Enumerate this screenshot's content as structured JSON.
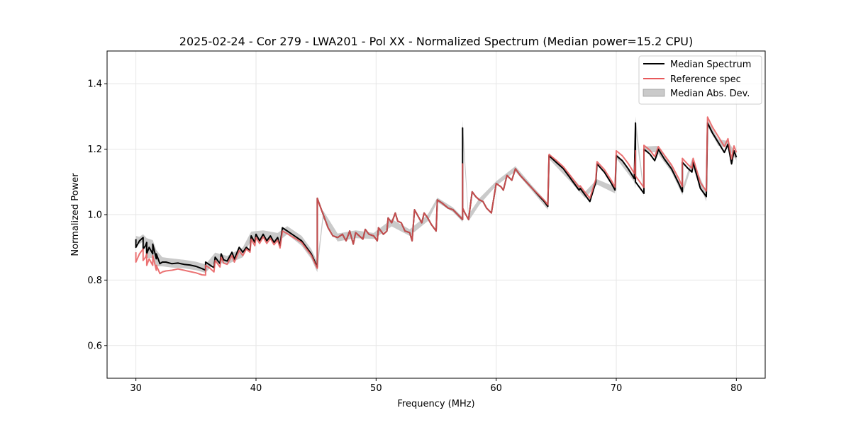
{
  "chart_data": {
    "type": "line",
    "title": "2025-02-24 - Cor 279 - LWA201 - Pol XX - Normalized Spectrum (Median power=15.2 CPU)",
    "xlabel": "Frequency (MHz)",
    "ylabel": "Normalized Power",
    "xlim": [
      27.6,
      82.4
    ],
    "ylim": [
      0.5,
      1.5
    ],
    "xticks": [
      30,
      40,
      50,
      60,
      70,
      80
    ],
    "yticks": [
      0.6,
      0.8,
      1.0,
      1.2,
      1.4
    ],
    "xtick_labels": [
      "30",
      "40",
      "50",
      "60",
      "70",
      "80"
    ],
    "ytick_labels": [
      "0.6",
      "0.8",
      "1.0",
      "1.2",
      "1.4"
    ],
    "grid": true,
    "legend_position": "top-right",
    "legend": [
      {
        "label": "Median Spectrum",
        "kind": "line",
        "color": "#000000"
      },
      {
        "label": "Reference spec",
        "kind": "line",
        "color": "#e8595b"
      },
      {
        "label": "Median Abs. Dev.",
        "kind": "band",
        "color": "#bdbdbd"
      }
    ],
    "series": [
      {
        "name": "Median Spectrum",
        "color": "#000000",
        "x": [
          30.0,
          30.0,
          30.3,
          30.6,
          30.6,
          30.8,
          30.9,
          30.9,
          31.1,
          31.4,
          31.4,
          31.7,
          31.7,
          32.0,
          32.2,
          32.5,
          33.0,
          33.5,
          34.0,
          34.5,
          35.0,
          35.5,
          35.8,
          35.8,
          36.2,
          36.5,
          36.6,
          37.0,
          37.1,
          37.3,
          37.6,
          38.0,
          38.2,
          38.6,
          38.9,
          39.2,
          39.5,
          39.6,
          39.9,
          40.0,
          40.3,
          40.6,
          40.9,
          41.2,
          41.5,
          41.8,
          42.0,
          42.2,
          42.6,
          43.0,
          43.4,
          43.8,
          44.2,
          44.6,
          45.1,
          45.1,
          45.3,
          45.6,
          46.0,
          46.4,
          46.8,
          47.2,
          47.5,
          47.8,
          48.1,
          48.3,
          48.6,
          48.9,
          49.1,
          49.4,
          49.8,
          50.1,
          50.2,
          50.6,
          50.9,
          51.0,
          51.3,
          51.6,
          51.8,
          52.1,
          52.4,
          52.8,
          53.0,
          53.2,
          53.5,
          53.8,
          54.0,
          54.3,
          54.6,
          55.0,
          55.1,
          55.5,
          56.0,
          56.4,
          56.8,
          57.2,
          57.2,
          57.2,
          57.4,
          57.7,
          58.0,
          58.3,
          58.6,
          58.9,
          59.2,
          59.6,
          60.0,
          60.4,
          60.6,
          60.9,
          61.3,
          61.6,
          62.0,
          62.5,
          63.0,
          63.5,
          64.0,
          64.3,
          64.4,
          65.0,
          65.6,
          66.2,
          66.9,
          67.0,
          67.4,
          67.8,
          68.3,
          68.4,
          69.0,
          69.6,
          69.9,
          70.0,
          70.5,
          71.0,
          71.5,
          71.6,
          71.6,
          71.6,
          72.0,
          72.3,
          72.3,
          72.8,
          73.2,
          73.4,
          73.5,
          74.0,
          74.6,
          75.2,
          75.5,
          75.5,
          76.0,
          76.3,
          76.4,
          77.0,
          77.5,
          77.6,
          78.0,
          78.5,
          79.0,
          79.3,
          79.6,
          79.8,
          80.0
        ],
        "values": [
          0.925,
          0.9,
          0.92,
          0.93,
          0.895,
          0.905,
          0.915,
          0.88,
          0.9,
          0.88,
          0.91,
          0.865,
          0.88,
          0.85,
          0.855,
          0.855,
          0.85,
          0.852,
          0.848,
          0.846,
          0.842,
          0.835,
          0.83,
          0.855,
          0.845,
          0.838,
          0.87,
          0.85,
          0.88,
          0.862,
          0.858,
          0.885,
          0.864,
          0.9,
          0.885,
          0.9,
          0.89,
          0.935,
          0.915,
          0.94,
          0.92,
          0.94,
          0.92,
          0.935,
          0.915,
          0.93,
          0.905,
          0.96,
          0.95,
          0.94,
          0.93,
          0.92,
          0.9,
          0.88,
          0.84,
          1.05,
          1.03,
          1.0,
          0.96,
          0.935,
          0.93,
          0.94,
          0.92,
          0.95,
          0.91,
          0.945,
          0.935,
          0.925,
          0.955,
          0.94,
          0.935,
          0.92,
          0.96,
          0.94,
          0.95,
          0.99,
          0.975,
          1.005,
          0.98,
          0.975,
          0.95,
          0.945,
          0.92,
          1.015,
          0.995,
          0.975,
          1.005,
          0.99,
          0.97,
          0.95,
          1.045,
          1.035,
          1.02,
          1.015,
          1.0,
          0.985,
          1.265,
          1.02,
          1.005,
          0.985,
          1.07,
          1.055,
          1.045,
          1.04,
          1.02,
          1.005,
          1.095,
          1.085,
          1.075,
          1.12,
          1.105,
          1.14,
          1.12,
          1.1,
          1.08,
          1.06,
          1.04,
          1.025,
          1.18,
          1.16,
          1.14,
          1.11,
          1.075,
          1.08,
          1.06,
          1.04,
          1.1,
          1.155,
          1.13,
          1.095,
          1.075,
          1.18,
          1.165,
          1.14,
          1.11,
          1.28,
          1.18,
          1.1,
          1.08,
          1.065,
          1.2,
          1.185,
          1.165,
          1.185,
          1.2,
          1.17,
          1.14,
          1.095,
          1.07,
          1.16,
          1.14,
          1.13,
          1.16,
          1.08,
          1.055,
          1.28,
          1.25,
          1.22,
          1.19,
          1.215,
          1.155,
          1.195,
          1.175
        ]
      },
      {
        "name": "Reference spec",
        "color": "#e8595b",
        "x": [
          30.0,
          30.0,
          30.3,
          30.6,
          30.6,
          30.8,
          30.9,
          30.9,
          31.1,
          31.4,
          31.4,
          31.7,
          31.7,
          32.0,
          32.2,
          32.5,
          33.0,
          33.5,
          34.0,
          34.5,
          35.0,
          35.5,
          35.8,
          35.8,
          36.2,
          36.5,
          36.6,
          37.0,
          37.1,
          37.3,
          37.6,
          38.0,
          38.2,
          38.6,
          38.9,
          39.2,
          39.5,
          39.6,
          39.9,
          40.0,
          40.3,
          40.6,
          40.9,
          41.2,
          41.5,
          41.8,
          42.0,
          42.2,
          42.6,
          43.0,
          43.4,
          43.8,
          44.2,
          44.6,
          45.1,
          45.1,
          45.3,
          45.6,
          46.0,
          46.4,
          46.8,
          47.2,
          47.5,
          47.8,
          48.1,
          48.3,
          48.6,
          48.9,
          49.1,
          49.4,
          49.8,
          50.1,
          50.2,
          50.6,
          50.9,
          51.0,
          51.3,
          51.6,
          51.8,
          52.1,
          52.4,
          52.8,
          53.0,
          53.2,
          53.5,
          53.8,
          54.0,
          54.3,
          54.6,
          55.0,
          55.1,
          55.5,
          56.0,
          56.4,
          56.8,
          57.2,
          57.2,
          57.2,
          57.4,
          57.7,
          58.0,
          58.3,
          58.6,
          58.9,
          59.2,
          59.6,
          60.0,
          60.4,
          60.6,
          60.9,
          61.3,
          61.6,
          62.0,
          62.5,
          63.0,
          63.5,
          64.0,
          64.3,
          64.4,
          65.0,
          65.6,
          66.2,
          66.9,
          67.0,
          67.4,
          67.8,
          68.3,
          68.4,
          69.0,
          69.6,
          69.9,
          70.0,
          70.5,
          71.0,
          71.5,
          71.6,
          71.6,
          71.6,
          72.0,
          72.3,
          72.3,
          72.8,
          73.2,
          73.4,
          73.5,
          74.0,
          74.6,
          75.2,
          75.5,
          75.5,
          76.0,
          76.3,
          76.4,
          77.0,
          77.5,
          77.6,
          78.0,
          78.5,
          79.0,
          79.3,
          79.6,
          79.8,
          80.0
        ],
        "values": [
          0.885,
          0.855,
          0.88,
          0.895,
          0.86,
          0.87,
          0.88,
          0.845,
          0.865,
          0.845,
          0.875,
          0.83,
          0.845,
          0.82,
          0.825,
          0.828,
          0.83,
          0.834,
          0.83,
          0.826,
          0.822,
          0.816,
          0.815,
          0.845,
          0.835,
          0.825,
          0.86,
          0.84,
          0.87,
          0.852,
          0.848,
          0.875,
          0.855,
          0.89,
          0.875,
          0.895,
          0.885,
          0.925,
          0.905,
          0.93,
          0.912,
          0.932,
          0.912,
          0.927,
          0.908,
          0.922,
          0.898,
          0.95,
          0.942,
          0.933,
          0.924,
          0.915,
          0.895,
          0.876,
          0.836,
          1.05,
          1.03,
          1.0,
          0.96,
          0.935,
          0.93,
          0.94,
          0.92,
          0.95,
          0.91,
          0.945,
          0.935,
          0.925,
          0.955,
          0.94,
          0.935,
          0.92,
          0.96,
          0.94,
          0.95,
          0.99,
          0.975,
          1.005,
          0.98,
          0.975,
          0.95,
          0.945,
          0.92,
          1.015,
          0.995,
          0.975,
          1.005,
          0.99,
          0.97,
          0.95,
          1.045,
          1.035,
          1.02,
          1.015,
          1.0,
          0.985,
          1.155,
          1.02,
          1.005,
          0.985,
          1.07,
          1.055,
          1.045,
          1.04,
          1.02,
          1.005,
          1.095,
          1.085,
          1.075,
          1.12,
          1.105,
          1.14,
          1.12,
          1.1,
          1.08,
          1.062,
          1.044,
          1.03,
          1.184,
          1.166,
          1.146,
          1.118,
          1.084,
          1.088,
          1.068,
          1.05,
          1.108,
          1.162,
          1.138,
          1.104,
          1.084,
          1.195,
          1.18,
          1.156,
          1.126,
          1.18,
          1.195,
          1.118,
          1.098,
          1.083,
          1.212,
          1.197,
          1.177,
          1.197,
          1.208,
          1.182,
          1.152,
          1.11,
          1.086,
          1.172,
          1.152,
          1.142,
          1.172,
          1.098,
          1.072,
          1.298,
          1.268,
          1.238,
          1.208,
          1.232,
          1.17,
          1.21,
          1.19
        ]
      }
    ],
    "band": {
      "name": "Median Abs. Dev.",
      "color": "#bdbdbd",
      "x": [
        30.0,
        30.3,
        30.6,
        30.9,
        31.4,
        31.7,
        32.2,
        33.0,
        34.0,
        35.0,
        35.8,
        36.6,
        37.6,
        38.9,
        39.6,
        40.6,
        41.8,
        42.6,
        43.8,
        44.6,
        45.1,
        45.6,
        46.8,
        48.3,
        49.8,
        51.3,
        52.8,
        54.3,
        55.1,
        56.4,
        57.2,
        57.2,
        57.7,
        58.6,
        60.0,
        61.6,
        63.0,
        64.3,
        64.4,
        66.2,
        67.4,
        68.4,
        69.9,
        70.0,
        71.5,
        71.6,
        71.6,
        72.3,
        72.3,
        73.4,
        74.6,
        75.5,
        76.3,
        77.5,
        77.6,
        78.5,
        79.3,
        80.0
      ],
      "upper": [
        0.935,
        0.932,
        0.94,
        0.928,
        0.922,
        0.892,
        0.87,
        0.866,
        0.862,
        0.856,
        0.848,
        0.884,
        0.874,
        0.9,
        0.948,
        0.952,
        0.944,
        0.965,
        0.935,
        0.895,
        0.856,
        1.012,
        0.942,
        0.952,
        0.944,
        0.986,
        0.955,
        1.0,
        1.052,
        1.022,
        0.992,
        1.29,
        1.0,
        1.05,
        1.102,
        1.148,
        1.088,
        1.035,
        1.188,
        1.12,
        1.07,
        1.108,
        1.085,
        1.188,
        1.12,
        1.1,
        1.3,
        1.075,
        1.208,
        1.21,
        1.15,
        1.08,
        1.17,
        1.07,
        1.29,
        1.23,
        1.225,
        1.185
      ],
      "lower": [
        0.915,
        0.91,
        0.918,
        0.868,
        0.868,
        0.842,
        0.842,
        0.838,
        0.836,
        0.83,
        0.822,
        0.856,
        0.848,
        0.87,
        0.922,
        0.928,
        0.916,
        0.94,
        0.905,
        0.865,
        0.824,
        0.988,
        0.918,
        0.928,
        0.926,
        0.964,
        0.935,
        0.98,
        1.038,
        1.008,
        0.978,
        1.24,
        0.98,
        1.03,
        1.088,
        1.132,
        1.072,
        1.015,
        1.17,
        1.1,
        1.05,
        1.092,
        1.065,
        1.172,
        1.1,
        1.08,
        1.26,
        1.055,
        1.192,
        1.19,
        1.13,
        1.06,
        1.15,
        1.04,
        1.27,
        1.21,
        1.205,
        1.165
      ]
    }
  }
}
